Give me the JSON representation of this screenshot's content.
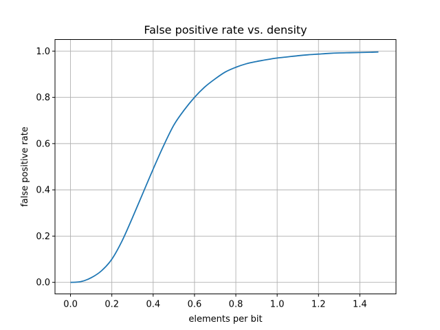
{
  "chart_data": {
    "type": "line",
    "title": "False positive rate vs. density",
    "xlabel": "elements per bit",
    "ylabel": "false positive rate",
    "xlim": [
      -0.075,
      1.575
    ],
    "ylim": [
      -0.05,
      1.05
    ],
    "xticks": [
      0.0,
      0.2,
      0.4,
      0.6,
      0.8,
      1.0,
      1.2,
      1.4
    ],
    "xtick_labels": [
      "0.0",
      "0.2",
      "0.4",
      "0.6",
      "0.8",
      "1.0",
      "1.2",
      "1.4"
    ],
    "yticks": [
      0.0,
      0.2,
      0.4,
      0.6,
      0.8,
      1.0
    ],
    "ytick_labels": [
      "0.0",
      "0.2",
      "0.4",
      "0.6",
      "0.8",
      "1.0"
    ],
    "grid": true,
    "color": "#1f77b4",
    "series": [
      {
        "x": [
          0.0,
          0.05,
          0.1,
          0.15,
          0.2,
          0.25,
          0.3,
          0.35,
          0.4,
          0.45,
          0.5,
          0.55,
          0.6,
          0.65,
          0.7,
          0.75,
          0.8,
          0.85,
          0.9,
          0.95,
          1.0,
          1.05,
          1.1,
          1.15,
          1.2,
          1.25,
          1.3,
          1.35,
          1.4,
          1.45,
          1.49
        ],
        "y": [
          0.0,
          0.003,
          0.02,
          0.05,
          0.1,
          0.18,
          0.28,
          0.385,
          0.49,
          0.59,
          0.68,
          0.745,
          0.8,
          0.845,
          0.88,
          0.91,
          0.93,
          0.945,
          0.955,
          0.963,
          0.97,
          0.975,
          0.98,
          0.984,
          0.987,
          0.99,
          0.992,
          0.993,
          0.994,
          0.995,
          0.996
        ]
      }
    ]
  }
}
